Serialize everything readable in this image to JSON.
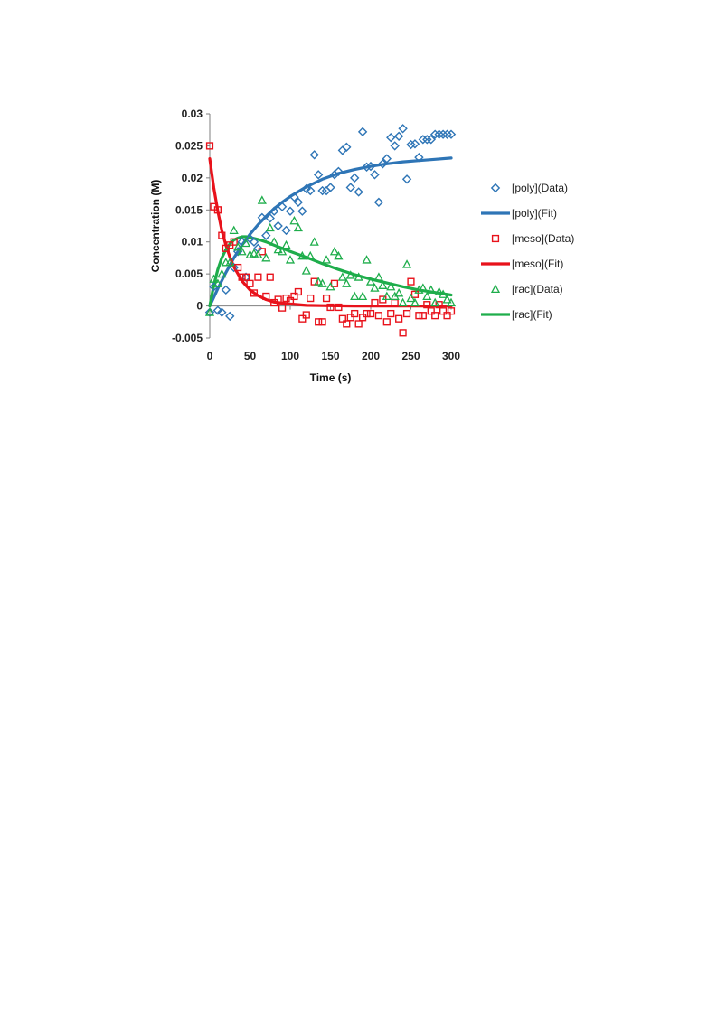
{
  "chart_data": {
    "type": "scatter",
    "xlabel": "Time (s)",
    "ylabel": "Concentration (M)",
    "xlim": [
      0,
      300
    ],
    "ylim": [
      -0.005,
      0.03
    ],
    "xticks": [
      0,
      50,
      100,
      150,
      200,
      250,
      300
    ],
    "xtick_labels": [
      "0",
      "50",
      "100",
      "150",
      "200",
      "250",
      "300"
    ],
    "yticks": [
      -0.005,
      0,
      0.005,
      0.01,
      0.015,
      0.02,
      0.025,
      0.03
    ],
    "ytick_labels": [
      "-0.005",
      "0",
      "0.005",
      "0.01",
      "0.015",
      "0.02",
      "0.025",
      "0.03"
    ],
    "grid": false,
    "legend_position": "right",
    "series": [
      {
        "name": "[poly](Data)",
        "kind": "markers",
        "marker": "diamond",
        "color": "#2E75B6",
        "x": [
          0,
          5,
          10,
          15,
          20,
          25,
          30,
          35,
          40,
          45,
          50,
          55,
          60,
          65,
          70,
          75,
          80,
          85,
          90,
          95,
          100,
          105,
          110,
          115,
          120,
          125,
          130,
          135,
          140,
          145,
          150,
          155,
          160,
          165,
          170,
          175,
          180,
          185,
          190,
          195,
          200,
          205,
          210,
          215,
          220,
          225,
          230,
          235,
          240,
          245,
          250,
          255,
          260,
          265,
          270,
          275,
          280,
          285,
          290,
          295,
          300
        ],
        "y": [
          -0.001,
          0.003,
          -0.0007,
          -0.001,
          0.0025,
          -0.0016,
          0.006,
          0.0085,
          0.01,
          0.0045,
          0.0105,
          0.01,
          0.009,
          0.0138,
          0.011,
          0.0137,
          0.0148,
          0.0125,
          0.0155,
          0.0118,
          0.0148,
          0.017,
          0.0162,
          0.0148,
          0.0183,
          0.018,
          0.0236,
          0.0205,
          0.018,
          0.018,
          0.0185,
          0.0205,
          0.021,
          0.0243,
          0.0248,
          0.0185,
          0.02,
          0.0178,
          0.0272,
          0.0217,
          0.0218,
          0.0205,
          0.0162,
          0.0222,
          0.023,
          0.0263,
          0.025,
          0.0265,
          0.0277,
          0.0198,
          0.0252,
          0.0253,
          0.0232,
          0.026,
          0.026,
          0.026,
          0.0268,
          0.0268,
          0.0268,
          0.0268,
          0.0268
        ]
      },
      {
        "name": "[poly](Fit)",
        "kind": "line",
        "color": "#2E75B6",
        "x": [
          0,
          10,
          20,
          30,
          40,
          50,
          60,
          70,
          80,
          90,
          100,
          120,
          140,
          160,
          180,
          200,
          220,
          240,
          260,
          280,
          300
        ],
        "y": [
          0,
          0.0027,
          0.0052,
          0.0075,
          0.0095,
          0.0112,
          0.0127,
          0.014,
          0.0152,
          0.0162,
          0.0171,
          0.0186,
          0.0198,
          0.0207,
          0.0213,
          0.0218,
          0.0222,
          0.0225,
          0.0227,
          0.0229,
          0.0231
        ]
      },
      {
        "name": "[meso](Data)",
        "kind": "markers",
        "marker": "square",
        "color": "#E8121B",
        "x": [
          0,
          5,
          10,
          15,
          20,
          25,
          30,
          35,
          40,
          45,
          50,
          55,
          60,
          65,
          70,
          75,
          80,
          85,
          90,
          95,
          100,
          105,
          110,
          115,
          120,
          125,
          130,
          135,
          140,
          145,
          150,
          155,
          160,
          165,
          170,
          175,
          180,
          185,
          190,
          195,
          200,
          205,
          210,
          215,
          220,
          225,
          230,
          235,
          240,
          245,
          250,
          255,
          260,
          265,
          270,
          275,
          280,
          285,
          290,
          295,
          300
        ],
        "y": [
          0.025,
          0.0155,
          0.015,
          0.011,
          0.009,
          0.0095,
          0.01,
          0.006,
          0.0045,
          0.0045,
          0.0035,
          0.002,
          0.0045,
          0.0085,
          0.0015,
          0.0045,
          0.0005,
          0.001,
          -0.0003,
          0.0012,
          0.0008,
          0.0015,
          0.0022,
          -0.002,
          -0.0014,
          0.0012,
          0.0038,
          -0.0025,
          -0.0025,
          0.0012,
          -0.0002,
          0.0035,
          -0.0002,
          -0.002,
          -0.0028,
          -0.0018,
          -0.0012,
          -0.0028,
          -0.0018,
          -0.0012,
          -0.0012,
          0.0005,
          -0.0015,
          0.001,
          -0.0025,
          -0.0012,
          0.0005,
          -0.002,
          -0.0042,
          -0.0012,
          0.0038,
          0.0018,
          -0.0015,
          -0.0015,
          0.0002,
          -0.0008,
          -0.0015,
          0.0002,
          -0.0008,
          -0.0015,
          -0.0008
        ]
      },
      {
        "name": "[meso](Fit)",
        "kind": "line",
        "color": "#E8121B",
        "x": [
          0,
          5,
          10,
          15,
          20,
          25,
          30,
          40,
          50,
          60,
          70,
          80,
          100,
          120,
          140,
          160,
          180,
          200,
          220,
          250,
          300
        ],
        "y": [
          0.023,
          0.0185,
          0.0148,
          0.0118,
          0.0095,
          0.0076,
          0.0061,
          0.0039,
          0.0025,
          0.0016,
          0.001,
          0.0006,
          0.0003,
          0.0001,
          5e-05,
          2e-05,
          0,
          0,
          0,
          0,
          0
        ]
      },
      {
        "name": "[rac](Data)",
        "kind": "markers",
        "marker": "triangle",
        "color": "#1EAD4B",
        "x": [
          0,
          5,
          10,
          15,
          20,
          25,
          30,
          35,
          40,
          45,
          50,
          55,
          60,
          65,
          70,
          75,
          80,
          85,
          90,
          95,
          100,
          105,
          110,
          115,
          120,
          125,
          130,
          135,
          140,
          145,
          150,
          155,
          160,
          165,
          170,
          175,
          180,
          185,
          190,
          195,
          200,
          205,
          210,
          215,
          220,
          225,
          230,
          235,
          240,
          245,
          250,
          255,
          260,
          265,
          270,
          275,
          280,
          285,
          290,
          295,
          300
        ],
        "y": [
          -0.001,
          0.0042,
          0.0035,
          0.005,
          0.0068,
          0.0068,
          0.0118,
          0.0092,
          0.0085,
          0.0098,
          0.008,
          0.0082,
          0.008,
          0.0165,
          0.0075,
          0.0122,
          0.01,
          0.0088,
          0.0085,
          0.0095,
          0.0072,
          0.0133,
          0.0122,
          0.0078,
          0.0055,
          0.0078,
          0.01,
          0.0038,
          0.0035,
          0.0072,
          0.003,
          0.0085,
          0.0078,
          0.0045,
          0.0035,
          0.0048,
          0.0015,
          0.0045,
          0.0015,
          0.0072,
          0.0038,
          0.0028,
          0.0045,
          0.0032,
          0.0015,
          0.003,
          0.0015,
          0.002,
          0.0005,
          0.0065,
          0.0012,
          0.0005,
          0.0025,
          0.0028,
          0.0015,
          0.0025,
          0.0005,
          0.0022,
          0.0018,
          0.001,
          0.0005
        ]
      },
      {
        "name": "[rac](Fit)",
        "kind": "line",
        "color": "#1EAD4B",
        "x": [
          0,
          5,
          10,
          15,
          20,
          25,
          30,
          35,
          40,
          45,
          50,
          60,
          70,
          80,
          90,
          100,
          120,
          140,
          160,
          180,
          200,
          220,
          240,
          260,
          280,
          300
        ],
        "y": [
          0,
          0.0032,
          0.0057,
          0.0075,
          0.0088,
          0.0097,
          0.0103,
          0.0106,
          0.0108,
          0.0108,
          0.0107,
          0.0104,
          0.01,
          0.0095,
          0.009,
          0.0085,
          0.0076,
          0.0066,
          0.0057,
          0.0049,
          0.0042,
          0.0036,
          0.003,
          0.0025,
          0.0021,
          0.0017
        ]
      }
    ]
  }
}
